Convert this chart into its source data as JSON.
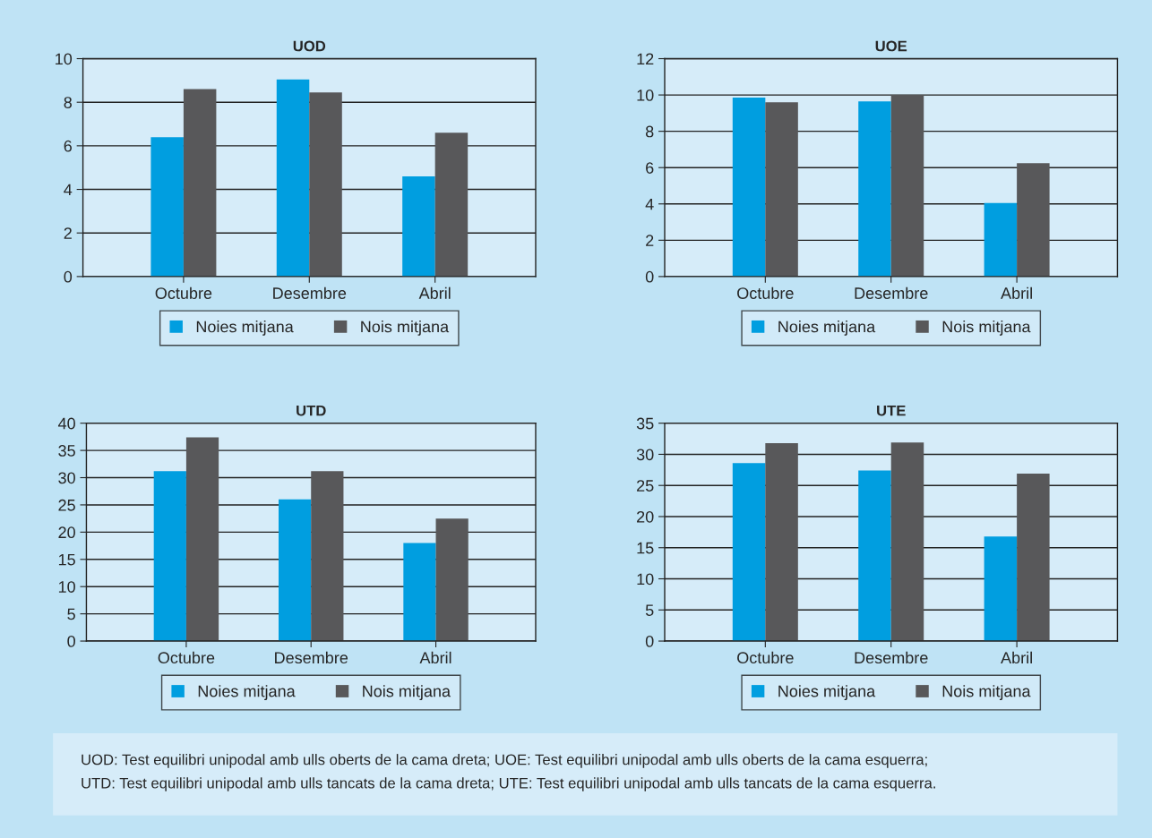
{
  "chart_data": [
    {
      "type": "bar",
      "title": "UOD",
      "categories": [
        "Octubre",
        "Desembre",
        "Abril"
      ],
      "ylim": [
        0,
        10
      ],
      "yticks": [
        0,
        2,
        4,
        6,
        8,
        10
      ],
      "grid": "y",
      "legend": "bottom",
      "series": [
        {
          "name": "Noies mitjana",
          "color": "#009ee0",
          "values": [
            6.4,
            9.05,
            4.6
          ]
        },
        {
          "name": "Nois mitjana",
          "color": "#58585a",
          "values": [
            8.6,
            8.45,
            6.6
          ]
        }
      ]
    },
    {
      "type": "bar",
      "title": "UOE",
      "categories": [
        "Octubre",
        "Desembre",
        "Abril"
      ],
      "ylim": [
        0,
        12
      ],
      "yticks": [
        0,
        2,
        4,
        6,
        8,
        10,
        12
      ],
      "grid": "y",
      "legend": "bottom",
      "series": [
        {
          "name": "Noies mitjana",
          "color": "#009ee0",
          "values": [
            9.85,
            9.65,
            4.05
          ]
        },
        {
          "name": "Nois mitjana",
          "color": "#58585a",
          "values": [
            9.6,
            10.0,
            6.25
          ]
        }
      ]
    },
    {
      "type": "bar",
      "title": "UTD",
      "categories": [
        "Octubre",
        "Desembre",
        "Abril"
      ],
      "ylim": [
        0,
        40
      ],
      "yticks": [
        0,
        5,
        10,
        15,
        20,
        25,
        30,
        35,
        40
      ],
      "grid": "y",
      "legend": "bottom",
      "series": [
        {
          "name": "Noies mitjana",
          "color": "#009ee0",
          "values": [
            31.2,
            26.0,
            18.0
          ]
        },
        {
          "name": "Nois mitjana",
          "color": "#58585a",
          "values": [
            37.4,
            31.2,
            22.5
          ]
        }
      ]
    },
    {
      "type": "bar",
      "title": "UTE",
      "categories": [
        "Octubre",
        "Desembre",
        "Abril"
      ],
      "ylim": [
        0,
        35
      ],
      "yticks": [
        0,
        5,
        10,
        15,
        20,
        25,
        30,
        35
      ],
      "grid": "y",
      "legend": "bottom",
      "series": [
        {
          "name": "Noies mitjana",
          "color": "#009ee0",
          "values": [
            28.6,
            27.4,
            16.8
          ]
        },
        {
          "name": "Nois mitjana",
          "color": "#58585a",
          "values": [
            31.8,
            31.9,
            26.9
          ]
        }
      ],
      "annotations": [
        "UOD: Test equilibri unipodal amb ulls oberts de la cama dreta; UOE: Test equilibri unipodal amb ulls oberts de la cama esquerra;",
        "UTD: Test equilibri unipodal amb ulls tancats de la cama dreta; UTE: Test equilibri unipodal amb ulls tancats de la cama esquerra."
      ]
    }
  ]
}
